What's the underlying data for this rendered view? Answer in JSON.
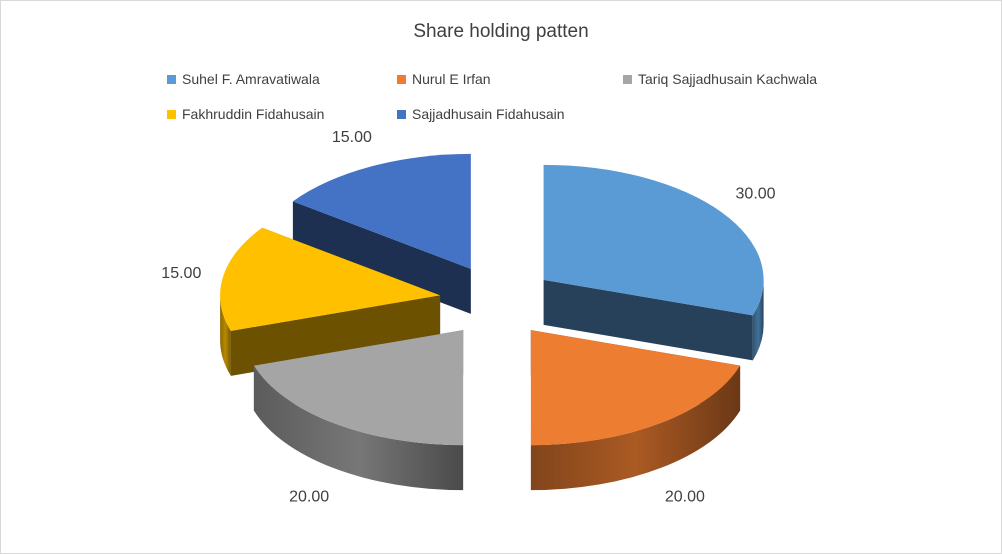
{
  "chart_data": {
    "type": "pie",
    "title": "Share holding patten",
    "legend_position": "top",
    "style": "3d-exploded",
    "categories": [
      "Suhel F. Amravatiwala",
      "Nurul E Irfan",
      "Tariq Sajjadhusain Kachwala",
      "Fakhruddin Fidahusain",
      "Sajjadhusain Fidahusain"
    ],
    "values": [
      30,
      20,
      20,
      15,
      15
    ],
    "data_labels": [
      "30.00",
      "20.00",
      "20.00",
      "15.00",
      "15.00"
    ],
    "colors": [
      "#5b9bd5",
      "#ed7d31",
      "#a5a5a5",
      "#ffc000",
      "#4472c4"
    ]
  }
}
